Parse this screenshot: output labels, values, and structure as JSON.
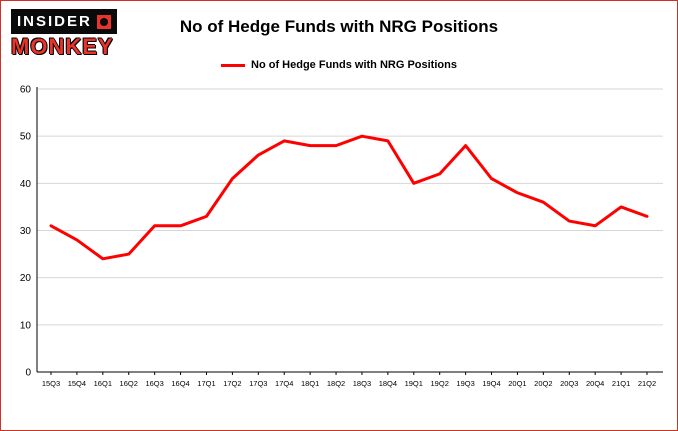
{
  "header": {
    "logo_top": "INSIDER",
    "logo_bottom": "MONKEY",
    "title": "No of Hedge Funds with NRG Positions"
  },
  "legend": {
    "label": "No of Hedge Funds with NRG Positions"
  },
  "colors": {
    "accent_red": "#ff0000",
    "border": "#cc3322",
    "grid": "#d6d6d6",
    "axis": "#000000"
  },
  "chart_data": {
    "type": "line",
    "title": "No of Hedge Funds with NRG Positions",
    "categories": [
      "15Q3",
      "15Q4",
      "16Q1",
      "16Q2",
      "16Q3",
      "16Q4",
      "17Q1",
      "17Q2",
      "17Q3",
      "17Q4",
      "18Q1",
      "18Q2",
      "18Q3",
      "18Q4",
      "19Q1",
      "19Q2",
      "19Q3",
      "19Q4",
      "20Q1",
      "20Q2",
      "20Q3",
      "20Q4",
      "21Q1",
      "21Q2"
    ],
    "series": [
      {
        "name": "No of Hedge Funds with NRG Positions",
        "color": "#ff0000",
        "values": [
          31,
          28,
          24,
          25,
          31,
          31,
          33,
          41,
          46,
          49,
          48,
          48,
          50,
          49,
          40,
          42,
          48,
          41,
          38,
          36,
          32,
          31,
          35,
          33
        ]
      }
    ],
    "ylim": [
      0,
      60
    ],
    "ytick_step": 10,
    "grid": true,
    "legend_position": "top",
    "xlabel": "",
    "ylabel": ""
  }
}
